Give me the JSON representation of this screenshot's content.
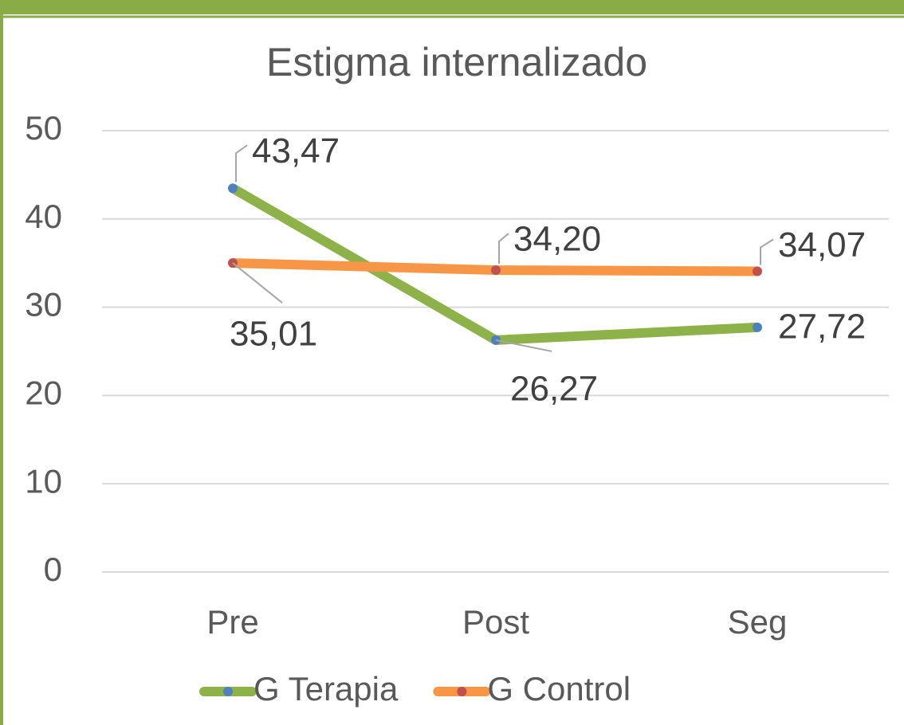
{
  "chart_data": {
    "type": "line",
    "title": "Estigma internalizado",
    "categories": [
      "Pre",
      "Post",
      "Seg"
    ],
    "series": [
      {
        "name": "G Terapia",
        "color": "#8db24a",
        "marker_color": "#4f81bd",
        "values": [
          43.47,
          26.27,
          27.72
        ],
        "value_labels": [
          "43,47",
          "26,27",
          "27,72"
        ]
      },
      {
        "name": "G Control",
        "color": "#f79646",
        "marker_color": "#c0504d",
        "values": [
          35.01,
          34.2,
          34.07
        ],
        "value_labels": [
          "35,01",
          "34,20",
          "34,07"
        ]
      }
    ],
    "ylim": [
      0,
      50
    ],
    "yticks": [
      0,
      10,
      20,
      30,
      40,
      50
    ],
    "grid": true,
    "legend": "bottom"
  }
}
